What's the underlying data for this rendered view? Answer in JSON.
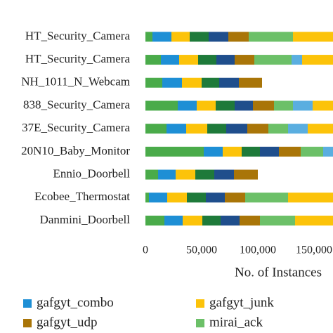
{
  "chart_data": {
    "type": "stacked-barh",
    "categories": [
      "HT_Security_Camera",
      "HT_Security_Camera",
      "NH_1011_N_Webcam",
      "838_Security_Camera",
      "37E_Security_Camera",
      "20N10_Baby_Monitor",
      "Ennio_Doorbell",
      "Ecobee_Thermostat",
      "Danmini_Doorbell"
    ],
    "xlabel": "No. of Instances",
    "xlim": [
      0,
      166875
    ],
    "xticks": [
      0,
      {
        "value": 50000,
        "label": "50,000"
      },
      {
        "value": 100000,
        "label": "100,000"
      },
      {
        "value": 150000,
        "label": "150,000"
      }
    ],
    "series": [
      {
        "color": "#4aab4a",
        "values": [
          6250,
          13750,
          15000,
          28750,
          18750,
          51875,
          11250,
          3125,
          16875
        ]
      },
      {
        "name": "gafgyt_combo",
        "color": "#1e8fd5",
        "values": [
          16875,
          16250,
          17500,
          16875,
          17500,
          16875,
          15625,
          16250,
          16250
        ]
      },
      {
        "name": "gafgyt_junk",
        "color": "#fcc30a",
        "values": [
          16250,
          16875,
          17500,
          16875,
          18750,
          16875,
          17500,
          17500,
          17500
        ]
      },
      {
        "color": "#1e7a3a",
        "values": [
          16875,
          16250,
          15625,
          16875,
          16875,
          16250,
          16875,
          16875,
          16250
        ]
      },
      {
        "color": "#1f4e8c",
        "values": [
          17500,
          16250,
          17500,
          16250,
          18750,
          16875,
          17500,
          16875,
          16875
        ]
      },
      {
        "name": "gafgyt_udp",
        "color": "#a97508",
        "values": [
          18125,
          17500,
          20625,
          18750,
          18750,
          19375,
          21250,
          18125,
          18125
        ]
      },
      {
        "name": "mirai_ack",
        "color": "#6cc068",
        "values": [
          39375,
          33125,
          0,
          16875,
          17500,
          20000,
          0,
          38125,
          31250
        ]
      },
      {
        "color": "#5aaee0",
        "values": [
          0,
          9375,
          0,
          17500,
          17500,
          12500,
          0,
          0,
          0
        ]
      },
      {
        "color": "#fcc30a",
        "values": [
          37500,
          31250,
          0,
          18125,
          22500,
          0,
          0,
          40000,
          33750
        ]
      }
    ]
  }
}
